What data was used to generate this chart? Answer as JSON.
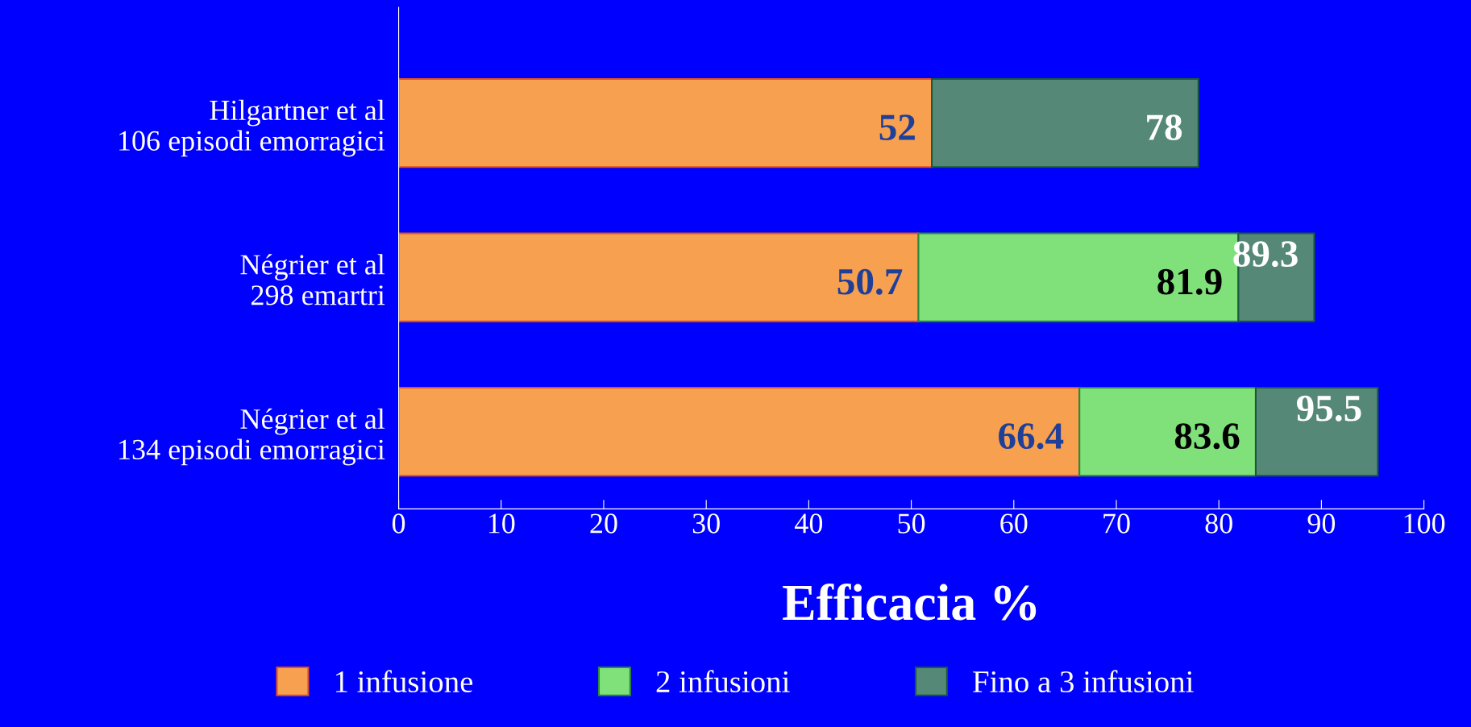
{
  "chart_data": {
    "type": "bar",
    "orientation": "horizontal",
    "stacked": true,
    "categories": [
      "Hilgartner et al\n106 episodi emorragici",
      "Négrier et al\n298 emartri",
      "Négrier et al\n134 episodi emorragici"
    ],
    "series": [
      {
        "name": "1 infusione",
        "color": "#f7a04f",
        "values": [
          52,
          50.7,
          66.4
        ],
        "value_labels": [
          "52",
          "50.7",
          "66.4"
        ]
      },
      {
        "name": "2 infusioni",
        "color": "#80e07a",
        "values": [
          null,
          31.2,
          17.2
        ]
      },
      {
        "name": "Fino a 3 infusioni",
        "color": "#558877",
        "values": [
          26,
          7.4,
          11.9
        ]
      }
    ],
    "annotations": [
      {
        "text": "81.9",
        "x": 81.9,
        "y": "Négrier et al\n298 emartri"
      },
      {
        "text": "83.6",
        "x": 83.6,
        "y": "Négrier et al\n134 episodi emorragici"
      },
      {
        "text": "78",
        "x": 78,
        "y": "Hilgartner et al\n106 episodi emorragici"
      },
      {
        "text": "89.3",
        "x": 89.3,
        "y": "Négrier et al\n298 emartri"
      },
      {
        "text": "95.5",
        "x": 95.5,
        "y": "Négrier et al\n134 episodi emorragici"
      }
    ],
    "xlabel": "Efficacia %",
    "xlim": [
      0,
      100
    ],
    "xticks": [
      0,
      10,
      20,
      30,
      40,
      50,
      60,
      70,
      80,
      90,
      100
    ],
    "legend": "bottom",
    "grid": false
  }
}
